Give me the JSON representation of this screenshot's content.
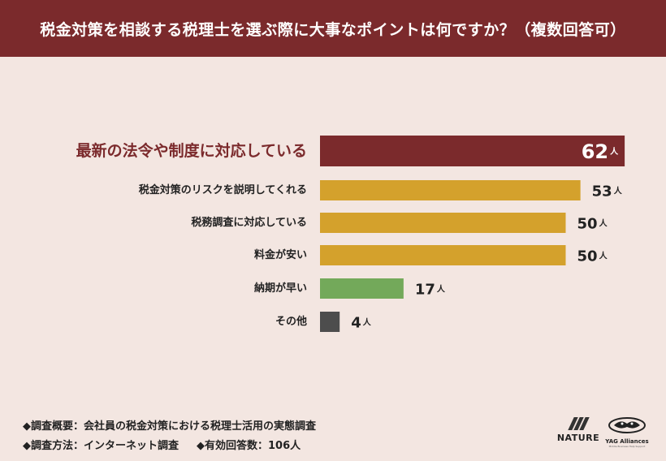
{
  "header": {
    "title": "税金対策を相談する税理士を選ぶ際に大事なポイントは何ですか？（複数回答可）"
  },
  "chart_data": {
    "type": "bar",
    "orientation": "horizontal",
    "title": "税金対策を相談する税理士を選ぶ際に大事なポイントは何ですか？（複数回答可）",
    "unit": "人",
    "categories": [
      "最新の法令や制度に対応している",
      "税金対策のリスクを説明してくれる",
      "税務調査に対応している",
      "料金が安い",
      "納期が早い",
      "その他"
    ],
    "values": [
      62,
      53,
      50,
      50,
      17,
      4
    ],
    "colors": [
      "#7b2a2c",
      "#d4a12c",
      "#d4a12c",
      "#d4a12c",
      "#73a95a",
      "#4d4d4d"
    ],
    "highlight_index": 0,
    "highlight_label_color": "#7b2a2c",
    "label_color": "#222222"
  },
  "footer": {
    "line1": "◆調査概要：会社員の税金対策における税理士活用の実態調査",
    "line2a": "◆調査方法：インターネット調査",
    "line2b": "◆有効回答数：106人"
  },
  "logos": {
    "nature": "NATURE",
    "yag": "YAG Alliances",
    "yag_sub": "Middle Business Help Support"
  }
}
